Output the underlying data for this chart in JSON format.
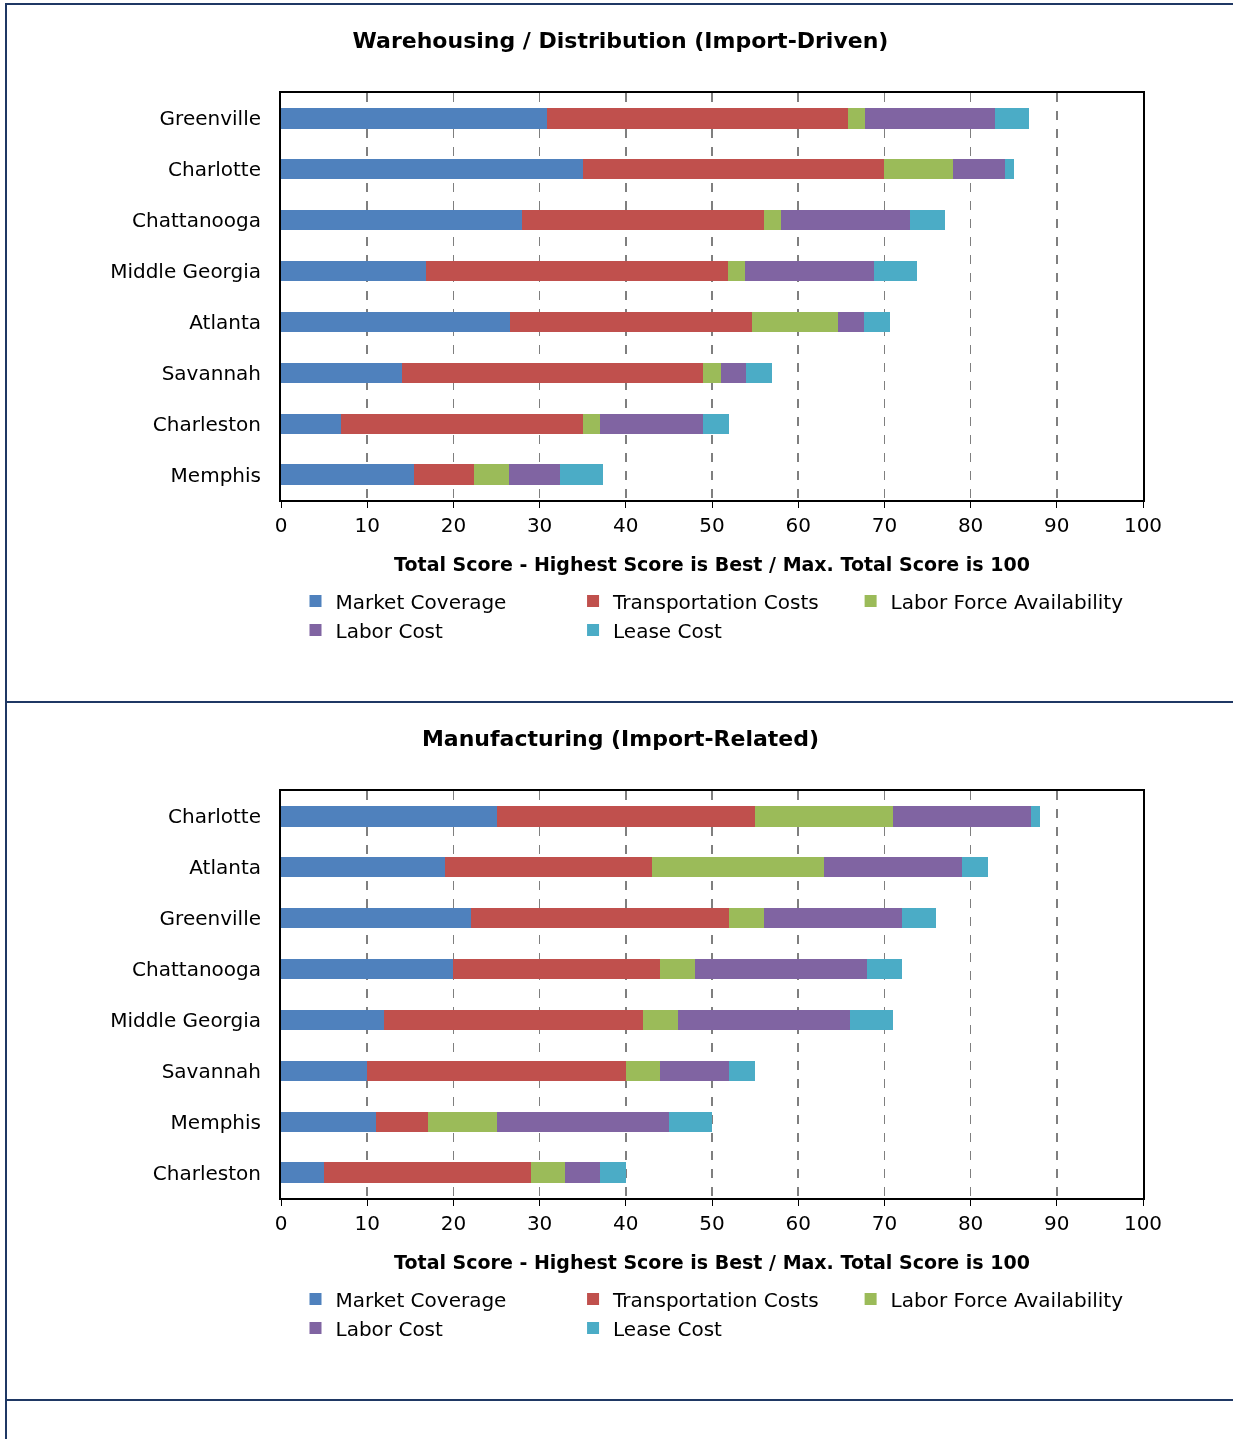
{
  "chart_data": [
    {
      "type": "bar",
      "orientation": "horizontal",
      "stacked": true,
      "title": "Warehousing / Distribution (Import-Driven)",
      "xlabel": "Total Score - Highest Score is Best / Max. Total Score is 100",
      "categories": [
        "Greenville",
        "Charlotte",
        "Chattanooga",
        "Middle Georgia",
        "Atlanta",
        "Savannah",
        "Charleston",
        "Memphis"
      ],
      "series": [
        {
          "name": "Market Coverage",
          "color": "#4f81bd",
          "values": [
            30.8,
            35,
            28,
            16.8,
            26.6,
            14,
            7,
            15.4
          ]
        },
        {
          "name": "Transportation Costs",
          "color": "#c0504d",
          "values": [
            35,
            35,
            28,
            35,
            28,
            35,
            28,
            7
          ]
        },
        {
          "name": "Labor Force Availability",
          "color": "#9bbb59",
          "values": [
            2,
            8,
            2,
            2,
            10,
            2,
            2,
            4
          ]
        },
        {
          "name": "Labor Cost",
          "color": "#8064a2",
          "values": [
            15,
            6,
            15,
            15,
            3,
            3,
            12,
            6
          ]
        },
        {
          "name": "Lease Cost",
          "color": "#4bacc6",
          "values": [
            4,
            1,
            4,
            5,
            3,
            3,
            3,
            5
          ]
        }
      ],
      "xlim": [
        0,
        100
      ],
      "xticks": [
        0,
        10,
        20,
        30,
        40,
        50,
        60,
        70,
        80,
        90,
        100
      ],
      "grid": "x",
      "legend": "bottom"
    },
    {
      "type": "bar",
      "orientation": "horizontal",
      "stacked": true,
      "title": "Manufacturing (Import-Related)",
      "xlabel": "Total Score - Highest Score is Best / Max. Total Score is 100",
      "categories": [
        "Charlotte",
        "Atlanta",
        "Greenville",
        "Chattanooga",
        "Middle Georgia",
        "Savannah",
        "Memphis",
        "Charleston"
      ],
      "series": [
        {
          "name": "Market Coverage",
          "color": "#4f81bd",
          "values": [
            25,
            19,
            22,
            20,
            12,
            10,
            11,
            5
          ]
        },
        {
          "name": "Transportation Costs",
          "color": "#c0504d",
          "values": [
            30,
            24,
            30,
            24,
            30,
            30,
            6,
            24
          ]
        },
        {
          "name": "Labor Force Availability",
          "color": "#9bbb59",
          "values": [
            16,
            20,
            4,
            4,
            4,
            4,
            8,
            4
          ]
        },
        {
          "name": "Labor Cost",
          "color": "#8064a2",
          "values": [
            16,
            16,
            16,
            20,
            20,
            8,
            20,
            4
          ]
        },
        {
          "name": "Lease Cost",
          "color": "#4bacc6",
          "values": [
            1,
            3,
            4,
            4,
            5,
            3,
            5,
            3
          ]
        }
      ],
      "xlim": [
        0,
        100
      ],
      "xticks": [
        0,
        10,
        20,
        30,
        40,
        50,
        60,
        70,
        80,
        90,
        100
      ],
      "grid": "x",
      "legend": "bottom"
    }
  ]
}
